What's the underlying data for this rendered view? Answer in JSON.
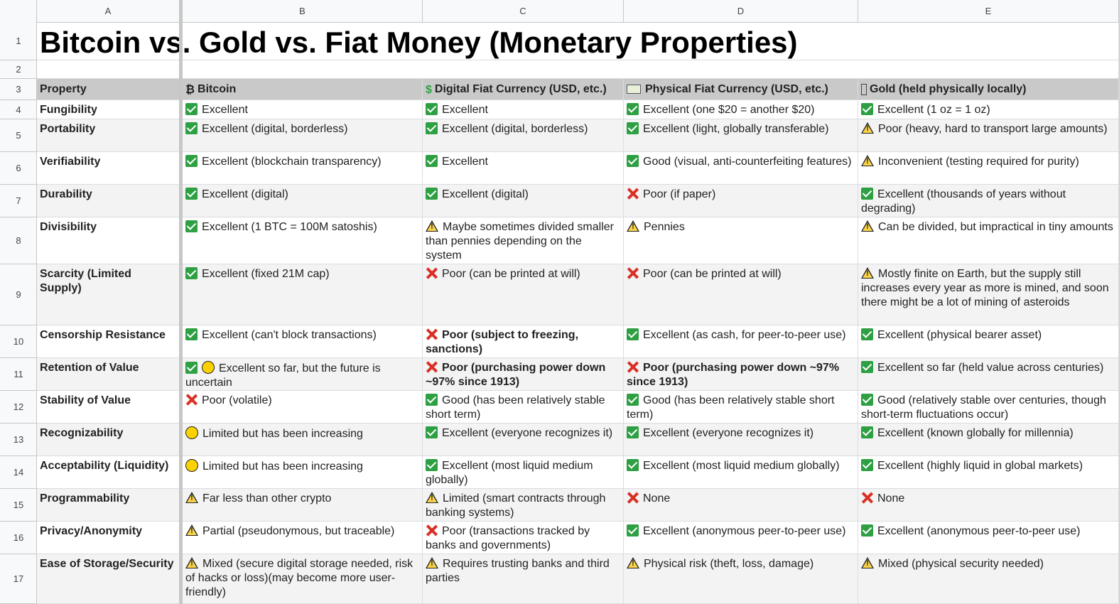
{
  "sheet": {
    "title": "Bitcoin vs. Gold vs. Fiat Money (Monetary Properties)",
    "column_letters": [
      "A",
      "B",
      "C",
      "D",
      "E"
    ],
    "row_numbers": [
      "1",
      "2",
      "3",
      "4",
      "5",
      "6",
      "7",
      "8",
      "9",
      "10",
      "11",
      "12",
      "13",
      "14",
      "15",
      "16",
      "17"
    ],
    "headers": {
      "property": "Property",
      "bitcoin": "Bitcoin",
      "digital_fiat": "Digital Fiat Currency (USD, etc.)",
      "physical_fiat": "Physical Fiat Currency (USD, etc.)",
      "gold": "Gold (held physically locally)"
    },
    "header_icons": {
      "bitcoin": "bitcoin-symbol",
      "bitcoin_glyph": "₿",
      "digital_fiat": "dollar-icon",
      "digital_fiat_glyph": "$",
      "physical_fiat": "banknote-icon",
      "gold": "missing-glyph-box"
    },
    "icon_legend": {
      "check": "green-check-icon",
      "cross": "red-cross-icon",
      "warn": "warning-icon",
      "circle": "yellow-circle-icon"
    },
    "rows": [
      {
        "property": "Fungibility",
        "bitcoin": {
          "icons": [
            "check"
          ],
          "text": "Excellent"
        },
        "digital_fiat": {
          "icons": [
            "check"
          ],
          "text": "Excellent"
        },
        "physical_fiat": {
          "icons": [
            "check"
          ],
          "text": "Excellent (one $20 = another $20)"
        },
        "gold": {
          "icons": [
            "check"
          ],
          "text": "Excellent (1 oz = 1 oz)"
        }
      },
      {
        "property": "Portability",
        "bitcoin": {
          "icons": [
            "check"
          ],
          "text": "Excellent (digital, borderless)"
        },
        "digital_fiat": {
          "icons": [
            "check"
          ],
          "text": "Excellent (digital, borderless)"
        },
        "physical_fiat": {
          "icons": [
            "check"
          ],
          "text": "Excellent (light, globally transferable)"
        },
        "gold": {
          "icons": [
            "warn"
          ],
          "text": "Poor (heavy, hard to transport large amounts)"
        }
      },
      {
        "property": "Verifiability",
        "bitcoin": {
          "icons": [
            "check"
          ],
          "text": "Excellent (blockchain transparency)"
        },
        "digital_fiat": {
          "icons": [
            "check"
          ],
          "text": "Excellent"
        },
        "physical_fiat": {
          "icons": [
            "check"
          ],
          "text": "Good (visual, anti-counterfeiting features)"
        },
        "gold": {
          "icons": [
            "warn"
          ],
          "text": "Inconvenient (testing required for purity)"
        }
      },
      {
        "property": "Durability",
        "bitcoin": {
          "icons": [
            "check"
          ],
          "text": "Excellent (digital)"
        },
        "digital_fiat": {
          "icons": [
            "check"
          ],
          "text": "Excellent (digital)"
        },
        "physical_fiat": {
          "icons": [
            "cross"
          ],
          "text": "Poor (if paper)"
        },
        "gold": {
          "icons": [
            "check"
          ],
          "text": "Excellent (thousands of years without degrading)"
        }
      },
      {
        "property": "Divisibility",
        "bitcoin": {
          "icons": [
            "check"
          ],
          "text": "Excellent (1 BTC = 100M satoshis)"
        },
        "digital_fiat": {
          "icons": [
            "warn"
          ],
          "text": "Maybe sometimes divided smaller than pennies depending on the system"
        },
        "physical_fiat": {
          "icons": [
            "warn"
          ],
          "text": "Pennies"
        },
        "gold": {
          "icons": [
            "warn"
          ],
          "text": "Can be divided, but impractical in tiny amounts"
        }
      },
      {
        "property": "Scarcity (Limited Supply)",
        "bitcoin": {
          "icons": [
            "check"
          ],
          "text": "Excellent (fixed 21M cap)"
        },
        "digital_fiat": {
          "icons": [
            "cross"
          ],
          "text": "Poor (can be printed at will)"
        },
        "physical_fiat": {
          "icons": [
            "cross"
          ],
          "text": "Poor (can be printed at will)"
        },
        "gold": {
          "icons": [
            "warn"
          ],
          "text": "Mostly finite on Earth, but the supply still increases every year as more is mined, and soon there might be a lot of mining of asteroids"
        }
      },
      {
        "property": "Censorship Resistance",
        "bitcoin": {
          "icons": [
            "check"
          ],
          "text": "Excellent (can't block transactions)"
        },
        "digital_fiat": {
          "icons": [
            "cross"
          ],
          "text": "Poor (subject to freezing, sanctions)",
          "bold": true
        },
        "physical_fiat": {
          "icons": [
            "check"
          ],
          "text": "Excellent (as cash, for peer-to-peer use)"
        },
        "gold": {
          "icons": [
            "check"
          ],
          "text": "Excellent (physical bearer asset)"
        }
      },
      {
        "property": "Retention of Value",
        "bitcoin": {
          "icons": [
            "check",
            "circle"
          ],
          "text": "Excellent so far, but the future is uncertain"
        },
        "digital_fiat": {
          "icons": [
            "cross"
          ],
          "text": "Poor (purchasing power down ~97% since 1913)",
          "bold": true
        },
        "physical_fiat": {
          "icons": [
            "cross"
          ],
          "text": "Poor (purchasing power down ~97% since 1913)",
          "bold": true
        },
        "gold": {
          "icons": [
            "check"
          ],
          "text": "Excellent so far (held value across centuries)"
        }
      },
      {
        "property": "Stability of Value",
        "bitcoin": {
          "icons": [
            "cross"
          ],
          "text": "Poor (volatile)"
        },
        "digital_fiat": {
          "icons": [
            "check"
          ],
          "text": "Good (has been relatively stable short term)"
        },
        "physical_fiat": {
          "icons": [
            "check"
          ],
          "text": "Good (has been relatively stable short term)"
        },
        "gold": {
          "icons": [
            "check"
          ],
          "text": "Good (relatively stable over centuries, though short-term fluctuations occur)"
        }
      },
      {
        "property": "Recognizability",
        "bitcoin": {
          "icons": [
            "circle"
          ],
          "text": "Limited but has been increasing"
        },
        "digital_fiat": {
          "icons": [
            "check"
          ],
          "text": "Excellent (everyone recognizes it)"
        },
        "physical_fiat": {
          "icons": [
            "check"
          ],
          "text": "Excellent (everyone recognizes it)"
        },
        "gold": {
          "icons": [
            "check"
          ],
          "text": "Excellent (known globally for millennia)"
        }
      },
      {
        "property": "Acceptability (Liquidity)",
        "bitcoin": {
          "icons": [
            "circle"
          ],
          "text": "Limited but has been increasing"
        },
        "digital_fiat": {
          "icons": [
            "check"
          ],
          "text": "Excellent (most liquid medium globally)"
        },
        "physical_fiat": {
          "icons": [
            "check"
          ],
          "text": "Excellent (most liquid medium globally)"
        },
        "gold": {
          "icons": [
            "check"
          ],
          "text": "Excellent (highly liquid in global markets)"
        }
      },
      {
        "property": "Programmability",
        "bitcoin": {
          "icons": [
            "warn"
          ],
          "text": "Far less than other crypto"
        },
        "digital_fiat": {
          "icons": [
            "warn"
          ],
          "text": "Limited (smart contracts through banking systems)"
        },
        "physical_fiat": {
          "icons": [
            "cross"
          ],
          "text": "None"
        },
        "gold": {
          "icons": [
            "cross"
          ],
          "text": "None"
        }
      },
      {
        "property": "Privacy/Anonymity",
        "bitcoin": {
          "icons": [
            "warn"
          ],
          "text": "Partial (pseudonymous, but traceable)"
        },
        "digital_fiat": {
          "icons": [
            "cross"
          ],
          "text": "Poor (transactions tracked by banks and governments)"
        },
        "physical_fiat": {
          "icons": [
            "check"
          ],
          "text": "Excellent (anonymous peer-to-peer use)"
        },
        "gold": {
          "icons": [
            "check"
          ],
          "text": "Excellent (anonymous peer-to-peer use)"
        }
      },
      {
        "property": "Ease of Storage/Security",
        "bitcoin": {
          "icons": [
            "warn"
          ],
          "text": "Mixed (secure digital storage needed, risk of hacks or loss)(may become more user-friendly)"
        },
        "digital_fiat": {
          "icons": [
            "warn"
          ],
          "text": "Requires trusting banks and third parties"
        },
        "physical_fiat": {
          "icons": [
            "warn"
          ],
          "text": "Physical risk (theft, loss, damage)"
        },
        "gold": {
          "icons": [
            "warn"
          ],
          "text": "Mixed (physical security needed)"
        }
      }
    ]
  }
}
